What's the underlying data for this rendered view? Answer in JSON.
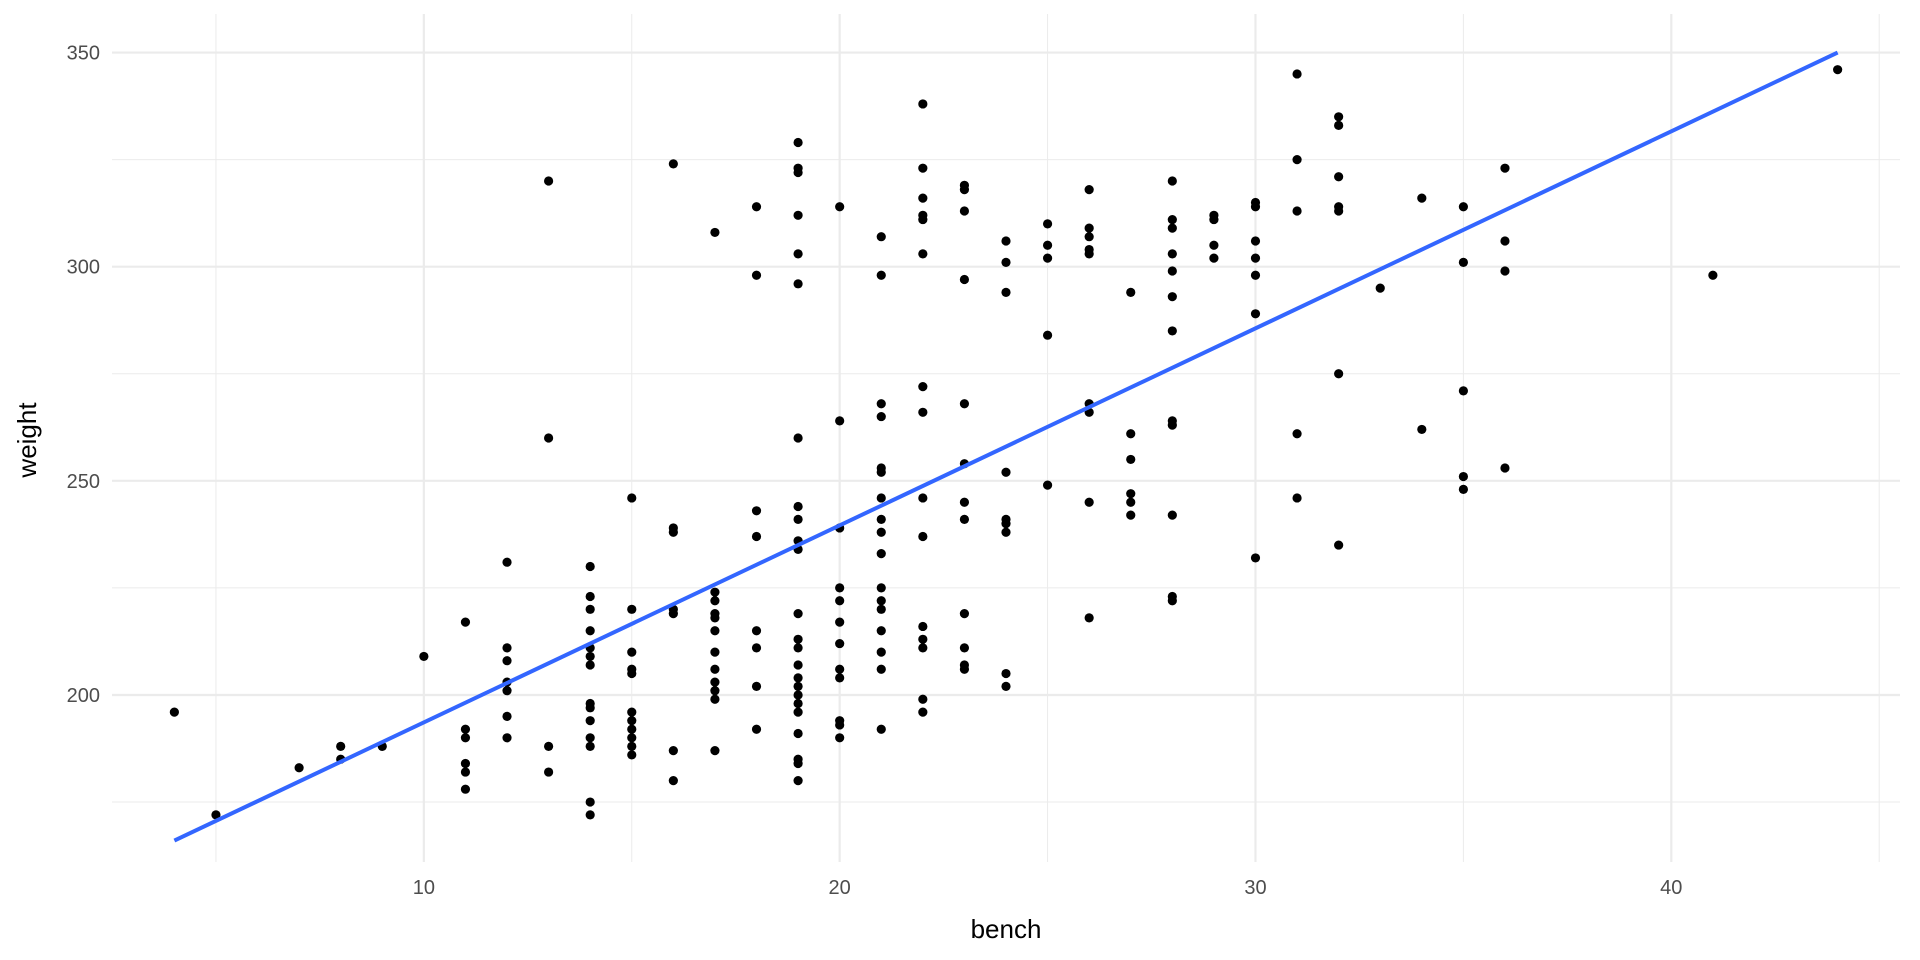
{
  "chart_data": {
    "type": "scatter",
    "title": "",
    "xlabel": "bench",
    "ylabel": "weight",
    "xlim": [
      2.5,
      45.5
    ],
    "ylim": [
      161,
      359
    ],
    "x_ticks": [
      10,
      20,
      30,
      40
    ],
    "x_minor_ticks": [
      5,
      15,
      25,
      35,
      45
    ],
    "y_ticks": [
      200,
      250,
      300,
      350
    ],
    "y_minor_ticks": [
      175,
      225,
      275,
      325
    ],
    "grid": true,
    "legend": "none",
    "point_color": "#000000",
    "line_color": "#3366FF",
    "grid_color": "#ebebeb",
    "series": [
      {
        "name": "observations",
        "points": [
          [
            4,
            196
          ],
          [
            5,
            172
          ],
          [
            7,
            183
          ],
          [
            8,
            185
          ],
          [
            8,
            188
          ],
          [
            9,
            188
          ],
          [
            10,
            209
          ],
          [
            11,
            217
          ],
          [
            11,
            192
          ],
          [
            11,
            190
          ],
          [
            11,
            184
          ],
          [
            11,
            182
          ],
          [
            11,
            178
          ],
          [
            12,
            231
          ],
          [
            12,
            211
          ],
          [
            12,
            208
          ],
          [
            12,
            203
          ],
          [
            12,
            201
          ],
          [
            12,
            195
          ],
          [
            12,
            190
          ],
          [
            13,
            320
          ],
          [
            13,
            260
          ],
          [
            13,
            188
          ],
          [
            13,
            182
          ],
          [
            14,
            230
          ],
          [
            14,
            223
          ],
          [
            14,
            220
          ],
          [
            14,
            215
          ],
          [
            14,
            211
          ],
          [
            14,
            209
          ],
          [
            14,
            207
          ],
          [
            14,
            198
          ],
          [
            14,
            197
          ],
          [
            14,
            194
          ],
          [
            14,
            190
          ],
          [
            14,
            188
          ],
          [
            14,
            175
          ],
          [
            14,
            172
          ],
          [
            15,
            246
          ],
          [
            15,
            220
          ],
          [
            15,
            210
          ],
          [
            15,
            206
          ],
          [
            15,
            205
          ],
          [
            15,
            196
          ],
          [
            15,
            194
          ],
          [
            15,
            192
          ],
          [
            15,
            190
          ],
          [
            15,
            188
          ],
          [
            15,
            186
          ],
          [
            16,
            324
          ],
          [
            16,
            239
          ],
          [
            16,
            238
          ],
          [
            16,
            220
          ],
          [
            16,
            219
          ],
          [
            16,
            187
          ],
          [
            16,
            180
          ],
          [
            17,
            308
          ],
          [
            17,
            224
          ],
          [
            17,
            222
          ],
          [
            17,
            219
          ],
          [
            17,
            218
          ],
          [
            17,
            215
          ],
          [
            17,
            210
          ],
          [
            17,
            206
          ],
          [
            17,
            203
          ],
          [
            17,
            201
          ],
          [
            17,
            199
          ],
          [
            17,
            187
          ],
          [
            18,
            314
          ],
          [
            18,
            298
          ],
          [
            18,
            243
          ],
          [
            18,
            237
          ],
          [
            18,
            215
          ],
          [
            18,
            211
          ],
          [
            18,
            202
          ],
          [
            18,
            192
          ],
          [
            19,
            329
          ],
          [
            19,
            323
          ],
          [
            19,
            322
          ],
          [
            19,
            312
          ],
          [
            19,
            303
          ],
          [
            19,
            296
          ],
          [
            19,
            260
          ],
          [
            19,
            244
          ],
          [
            19,
            241
          ],
          [
            19,
            236
          ],
          [
            19,
            234
          ],
          [
            19,
            219
          ],
          [
            19,
            213
          ],
          [
            19,
            211
          ],
          [
            19,
            207
          ],
          [
            19,
            204
          ],
          [
            19,
            202
          ],
          [
            19,
            200
          ],
          [
            19,
            198
          ],
          [
            19,
            196
          ],
          [
            19,
            191
          ],
          [
            19,
            185
          ],
          [
            19,
            184
          ],
          [
            19,
            180
          ],
          [
            20,
            314
          ],
          [
            20,
            264
          ],
          [
            20,
            239
          ],
          [
            20,
            225
          ],
          [
            20,
            222
          ],
          [
            20,
            217
          ],
          [
            20,
            212
          ],
          [
            20,
            206
          ],
          [
            20,
            204
          ],
          [
            20,
            194
          ],
          [
            20,
            193
          ],
          [
            20,
            190
          ],
          [
            21,
            307
          ],
          [
            21,
            298
          ],
          [
            21,
            268
          ],
          [
            21,
            265
          ],
          [
            21,
            253
          ],
          [
            21,
            252
          ],
          [
            21,
            246
          ],
          [
            21,
            241
          ],
          [
            21,
            238
          ],
          [
            21,
            233
          ],
          [
            21,
            225
          ],
          [
            21,
            222
          ],
          [
            21,
            220
          ],
          [
            21,
            215
          ],
          [
            21,
            210
          ],
          [
            21,
            206
          ],
          [
            21,
            192
          ],
          [
            22,
            338
          ],
          [
            22,
            323
          ],
          [
            22,
            316
          ],
          [
            22,
            312
          ],
          [
            22,
            311
          ],
          [
            22,
            303
          ],
          [
            22,
            272
          ],
          [
            22,
            266
          ],
          [
            22,
            246
          ],
          [
            22,
            237
          ],
          [
            22,
            216
          ],
          [
            22,
            213
          ],
          [
            22,
            211
          ],
          [
            22,
            199
          ],
          [
            22,
            196
          ],
          [
            23,
            319
          ],
          [
            23,
            318
          ],
          [
            23,
            313
          ],
          [
            23,
            297
          ],
          [
            23,
            268
          ],
          [
            23,
            254
          ],
          [
            23,
            245
          ],
          [
            23,
            241
          ],
          [
            23,
            219
          ],
          [
            23,
            211
          ],
          [
            23,
            207
          ],
          [
            23,
            206
          ],
          [
            24,
            306
          ],
          [
            24,
            301
          ],
          [
            24,
            294
          ],
          [
            24,
            252
          ],
          [
            24,
            241
          ],
          [
            24,
            240
          ],
          [
            24,
            238
          ],
          [
            24,
            205
          ],
          [
            24,
            202
          ],
          [
            25,
            310
          ],
          [
            25,
            305
          ],
          [
            25,
            302
          ],
          [
            25,
            284
          ],
          [
            25,
            249
          ],
          [
            26,
            318
          ],
          [
            26,
            309
          ],
          [
            26,
            307
          ],
          [
            26,
            304
          ],
          [
            26,
            303
          ],
          [
            26,
            268
          ],
          [
            26,
            266
          ],
          [
            26,
            245
          ],
          [
            26,
            218
          ],
          [
            27,
            294
          ],
          [
            27,
            261
          ],
          [
            27,
            255
          ],
          [
            27,
            247
          ],
          [
            27,
            245
          ],
          [
            27,
            242
          ],
          [
            28,
            320
          ],
          [
            28,
            311
          ],
          [
            28,
            309
          ],
          [
            28,
            303
          ],
          [
            28,
            299
          ],
          [
            28,
            293
          ],
          [
            28,
            285
          ],
          [
            28,
            264
          ],
          [
            28,
            263
          ],
          [
            28,
            242
          ],
          [
            28,
            223
          ],
          [
            28,
            222
          ],
          [
            29,
            312
          ],
          [
            29,
            311
          ],
          [
            29,
            305
          ],
          [
            29,
            302
          ],
          [
            30,
            315
          ],
          [
            30,
            314
          ],
          [
            30,
            306
          ],
          [
            30,
            302
          ],
          [
            30,
            298
          ],
          [
            30,
            289
          ],
          [
            30,
            232
          ],
          [
            31,
            345
          ],
          [
            31,
            325
          ],
          [
            31,
            313
          ],
          [
            31,
            261
          ],
          [
            31,
            246
          ],
          [
            32,
            335
          ],
          [
            32,
            333
          ],
          [
            32,
            321
          ],
          [
            32,
            314
          ],
          [
            32,
            313
          ],
          [
            32,
            275
          ],
          [
            32,
            235
          ],
          [
            33,
            295
          ],
          [
            34,
            316
          ],
          [
            34,
            262
          ],
          [
            35,
            314
          ],
          [
            35,
            301
          ],
          [
            35,
            271
          ],
          [
            35,
            251
          ],
          [
            35,
            248
          ],
          [
            36,
            323
          ],
          [
            36,
            306
          ],
          [
            36,
            299
          ],
          [
            36,
            253
          ],
          [
            41,
            298
          ],
          [
            44,
            346
          ]
        ]
      },
      {
        "name": "linear fit",
        "type": "line",
        "x": [
          4,
          44
        ],
        "y": [
          166,
          350
        ]
      }
    ]
  }
}
